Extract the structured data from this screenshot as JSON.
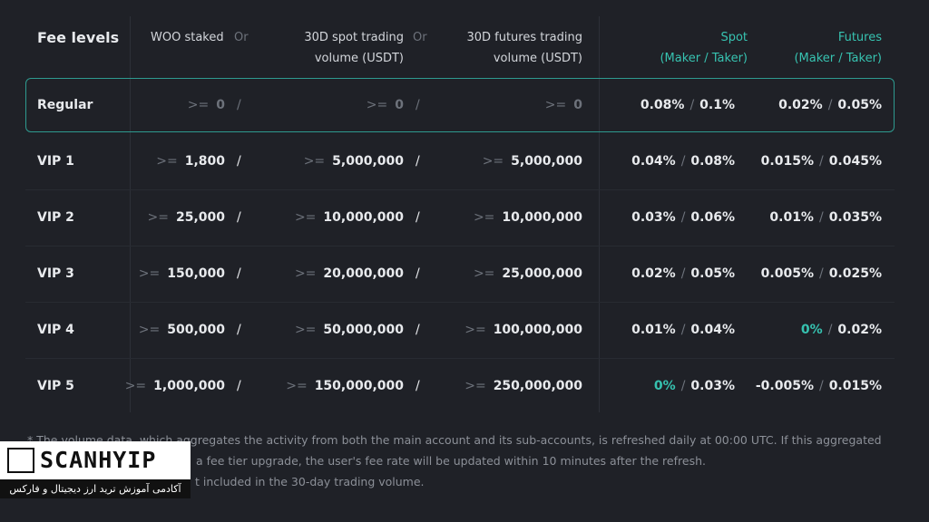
{
  "table": {
    "header": {
      "fee_levels": "Fee levels",
      "woo": "WOO staked",
      "or": "Or",
      "spot_volume": [
        "30D spot trading",
        "volume (USDT)"
      ],
      "futures_volume": [
        "30D futures trading",
        "volume (USDT)"
      ],
      "spot_fee": [
        "Spot",
        "(Maker / Taker)"
      ],
      "futures_fee": [
        "Futures",
        "(Maker / Taker)"
      ]
    },
    "prefix": ">=",
    "slash": "/",
    "rows": [
      {
        "level": "Regular",
        "woo": "0",
        "spot_volume": "0",
        "futures_volume": "0",
        "spot_fee": {
          "maker": "0.08%",
          "taker": "0.1%"
        },
        "futures_fee": {
          "maker": "0.02%",
          "taker": "0.05%"
        },
        "border_color": "#2e9a8f"
      },
      {
        "level": "VIP 1",
        "woo": "1,800",
        "spot_volume": "5,000,000",
        "futures_volume": "5,000,000",
        "spot_fee": {
          "maker": "0.04%",
          "taker": "0.08%"
        },
        "futures_fee": {
          "maker": "0.015%",
          "taker": "0.045%"
        }
      },
      {
        "level": "VIP 2",
        "woo": "25,000",
        "spot_volume": "10,000,000",
        "futures_volume": "10,000,000",
        "spot_fee": {
          "maker": "0.03%",
          "taker": "0.06%"
        },
        "futures_fee": {
          "maker": "0.01%",
          "taker": "0.035%"
        }
      },
      {
        "level": "VIP 3",
        "woo": "150,000",
        "spot_volume": "20,000,000",
        "futures_volume": "25,000,000",
        "spot_fee": {
          "maker": "0.02%",
          "taker": "0.05%"
        },
        "futures_fee": {
          "maker": "0.005%",
          "taker": "0.025%"
        }
      },
      {
        "level": "VIP 4",
        "woo": "500,000",
        "spot_volume": "50,000,000",
        "futures_volume": "100,000,000",
        "spot_fee": {
          "maker": "0.01%",
          "taker": "0.04%"
        },
        "futures_fee": {
          "maker": "0%",
          "taker": "0.02%",
          "maker_color": "#36c2b0"
        }
      },
      {
        "level": "VIP 5",
        "woo": "1,000,000",
        "spot_volume": "150,000,000",
        "futures_volume": "250,000,000",
        "spot_fee": {
          "maker": "0%",
          "taker": "0.03%",
          "maker_color": "#36c2b0"
        },
        "futures_fee": {
          "maker": "-0.005%",
          "taker": "0.015%"
        }
      }
    ]
  },
  "footnote": [
    "* The volume data, which aggregates the activity from both the main account and its sub-accounts, is refreshed daily at 00:00 UTC. If this aggregated",
    "a fee tier upgrade, the user's fee rate will be updated within 10 minutes after the refresh.",
    "t included in the 30-day trading volume."
  ],
  "watermark": {
    "brand": "SCANHYIP",
    "tagline": "آکادمی آموزش ترید ارز دیجیتال و فارکس"
  }
}
